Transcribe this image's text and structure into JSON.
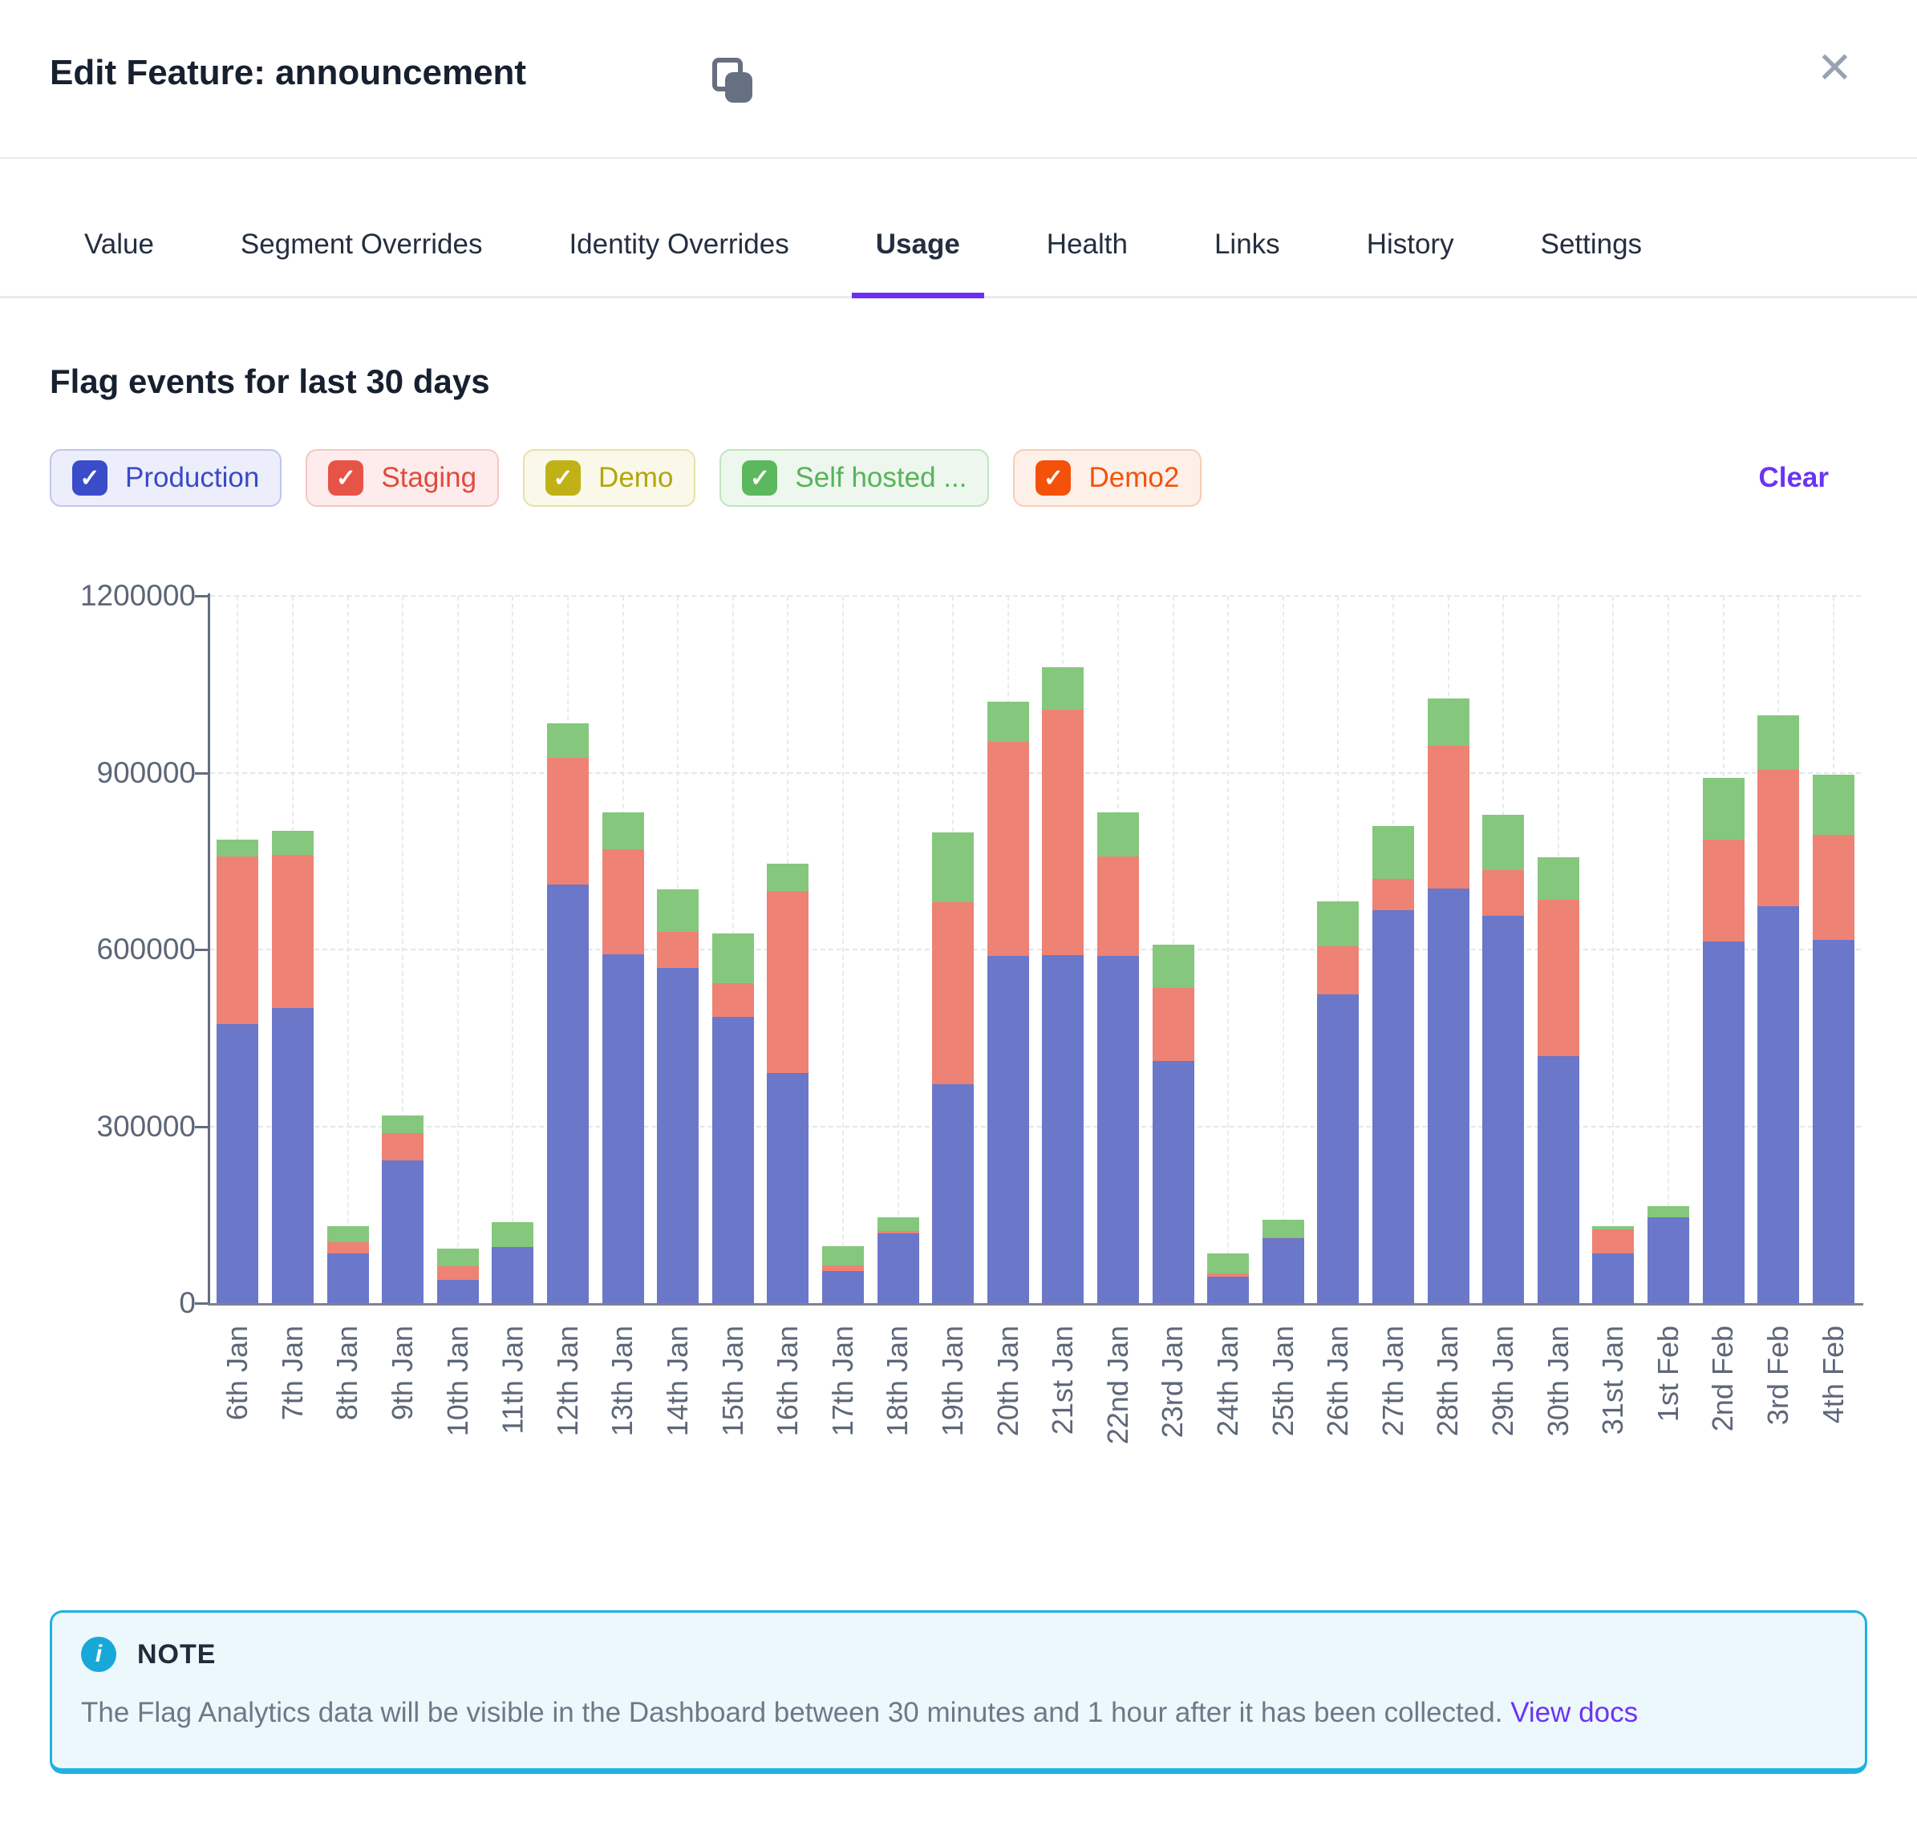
{
  "header": {
    "title": "Edit Feature: announcement"
  },
  "icons": {
    "close": "✕",
    "check": "✓",
    "info": "i"
  },
  "tabs": {
    "items": [
      {
        "label": "Value",
        "active": false
      },
      {
        "label": "Segment Overrides",
        "active": false
      },
      {
        "label": "Identity Overrides",
        "active": false
      },
      {
        "label": "Usage",
        "active": true
      },
      {
        "label": "Health",
        "active": false
      },
      {
        "label": "Links",
        "active": false
      },
      {
        "label": "History",
        "active": false
      },
      {
        "label": "Settings",
        "active": false
      }
    ],
    "active_underline_color": "#6d2ef5"
  },
  "section": {
    "title": "Flag events for last 30 days",
    "clear_label": "Clear"
  },
  "legend": {
    "environments": [
      {
        "label": "Production",
        "checked": true,
        "box": "#3b4cc8",
        "bg": "#eceefb",
        "border": "#bfc6ee",
        "text": "#3a4ac5"
      },
      {
        "label": "Staging",
        "checked": true,
        "box": "#e85347",
        "bg": "#fdeceb",
        "border": "#f6c7c2",
        "text": "#e2493e"
      },
      {
        "label": "Demo",
        "checked": true,
        "box": "#c0b216",
        "bg": "#faf8e8",
        "border": "#e7e1a9",
        "text": "#b2a60d"
      },
      {
        "label": "Self hosted ...",
        "checked": true,
        "box": "#5cb85f",
        "bg": "#edf7ed",
        "border": "#c0e4c1",
        "text": "#57b35a"
      },
      {
        "label": "Demo2",
        "checked": true,
        "box": "#f4510b",
        "bg": "#fdf0e9",
        "border": "#f8cdb5",
        "text": "#f4510b"
      }
    ]
  },
  "chart_data": {
    "type": "bar",
    "stacked": true,
    "title": "Flag events for last 30 days",
    "xlabel": "",
    "ylabel": "",
    "ylim": [
      0,
      1200000
    ],
    "grid": true,
    "y_ticks": [
      {
        "value": 0,
        "label": "0"
      },
      {
        "value": 300000,
        "label": "300000"
      },
      {
        "value": 600000,
        "label": "600000"
      },
      {
        "value": 900000,
        "label": "900000"
      },
      {
        "value": 1200000,
        "label": "1200000"
      }
    ],
    "categories": [
      "6th Jan",
      "7th Jan",
      "8th Jan",
      "9th Jan",
      "10th Jan",
      "11th Jan",
      "12th Jan",
      "13th Jan",
      "14th Jan",
      "15th Jan",
      "16th Jan",
      "17th Jan",
      "18th Jan",
      "19th Jan",
      "20th Jan",
      "21st Jan",
      "22nd Jan",
      "23rd Jan",
      "24th Jan",
      "25th Jan",
      "26th Jan",
      "27th Jan",
      "28th Jan",
      "29th Jan",
      "30th Jan",
      "31st Jan",
      "1st Feb",
      "2nd Feb",
      "3rd Feb",
      "4th Feb"
    ],
    "series": [
      {
        "name": "Production",
        "color": "#6b77c9",
        "values": [
          474000,
          501000,
          84000,
          242000,
          40000,
          95000,
          710000,
          592000,
          569000,
          486000,
          390000,
          55000,
          118000,
          372000,
          589000,
          590000,
          589000,
          411000,
          45000,
          110000,
          524000,
          666000,
          704000,
          657000,
          419000,
          85000,
          146000,
          613000,
          674000,
          616000
        ]
      },
      {
        "name": "Staging",
        "color": "#ee8274",
        "values": [
          284000,
          259000,
          20000,
          46000,
          22000,
          0,
          215000,
          178000,
          61000,
          57000,
          309000,
          9000,
          4000,
          308000,
          363000,
          417000,
          169000,
          124000,
          5000,
          2000,
          82000,
          54000,
          242000,
          78000,
          265000,
          40000,
          0,
          173000,
          231000,
          178000
        ]
      },
      {
        "name": "Self hosted ...",
        "color": "#85c87d",
        "values": [
          28000,
          42000,
          26000,
          30000,
          30000,
          42000,
          58000,
          62000,
          72000,
          84000,
          47000,
          32000,
          23000,
          119000,
          68000,
          72000,
          74000,
          73000,
          35000,
          30000,
          76000,
          89000,
          80000,
          93000,
          72000,
          5000,
          19000,
          105000,
          92000,
          103000
        ]
      }
    ],
    "legend_position": "top"
  },
  "note": {
    "title": "NOTE",
    "text": "The Flag Analytics data will be visible in the Dashboard between 30 minutes and 1 hour after it has been collected.",
    "link_label": "View docs"
  }
}
